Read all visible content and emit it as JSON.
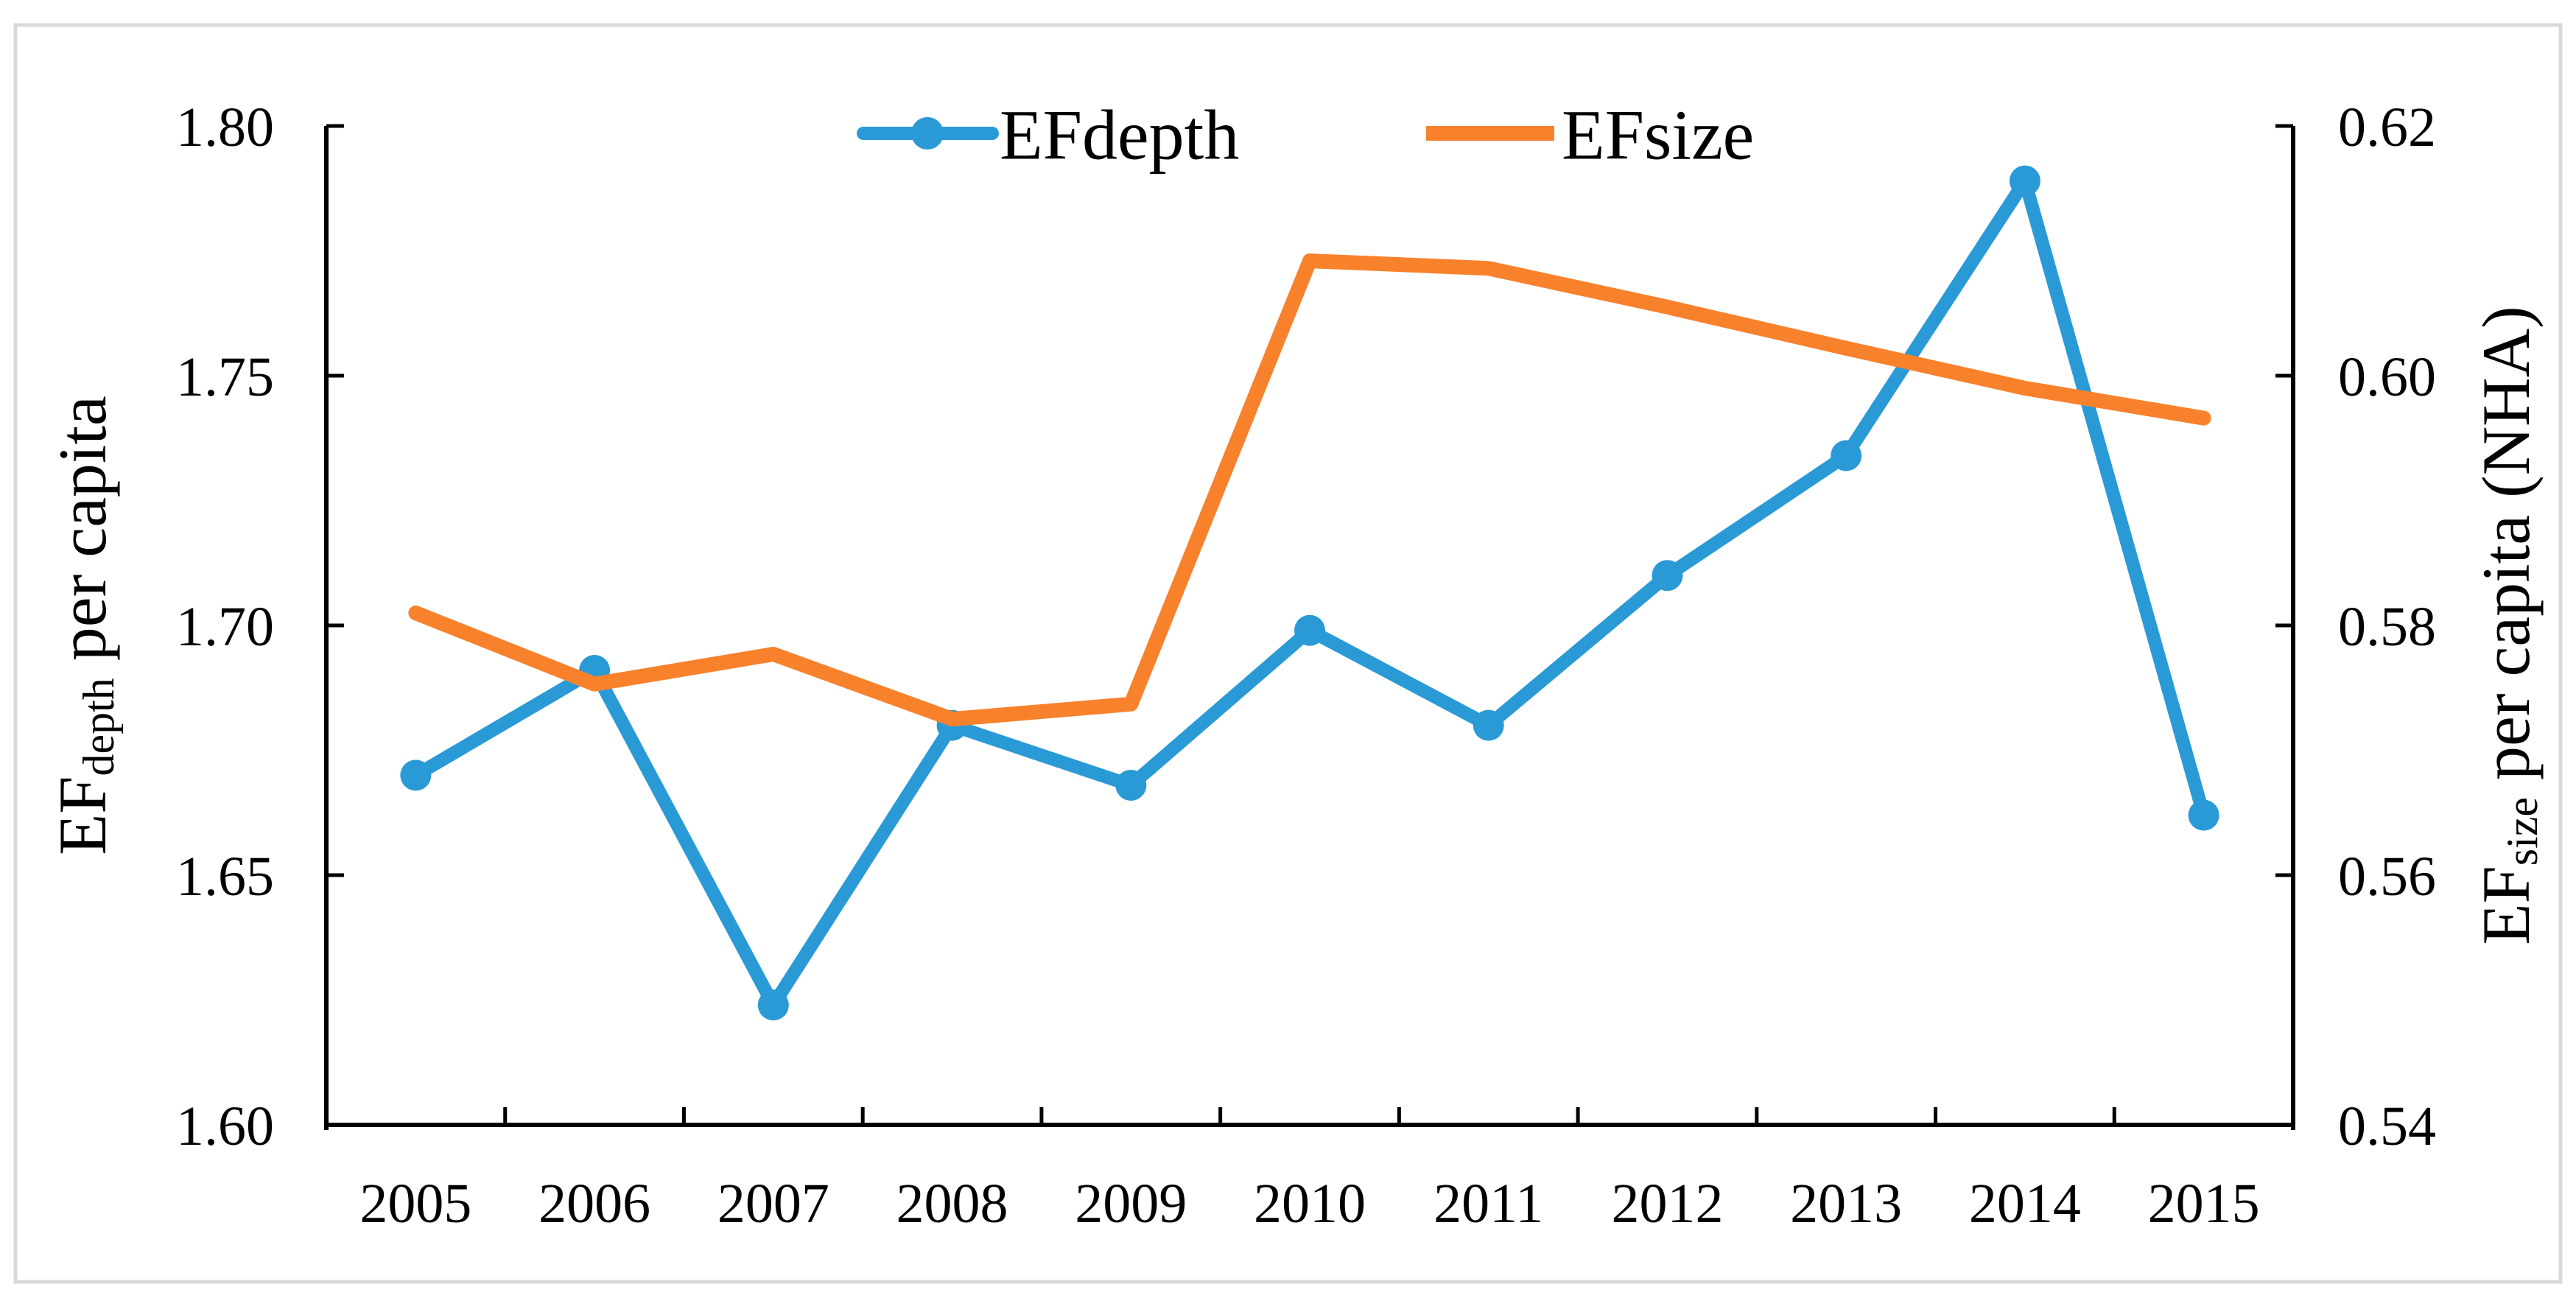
{
  "chart_data": {
    "type": "line",
    "title": "",
    "categories": [
      "2005",
      "2006",
      "2007",
      "2008",
      "2009",
      "2010",
      "2011",
      "2012",
      "2013",
      "2014",
      "2015"
    ],
    "series": [
      {
        "name": "EFdepth",
        "axis": "left",
        "color": "#2A9AD6",
        "marker": "circle",
        "values": [
          1.67,
          1.691,
          1.624,
          1.68,
          1.668,
          1.699,
          1.68,
          1.71,
          1.734,
          1.789,
          1.662
        ]
      },
      {
        "name": "EFsize",
        "axis": "right",
        "color": "#F8812C",
        "marker": "none",
        "values": [
          0.581,
          0.5753,
          0.5777,
          0.5725,
          0.5737,
          0.6092,
          0.6086,
          0.6055,
          0.6022,
          0.599,
          0.5966
        ]
      }
    ],
    "axes": {
      "left": {
        "title": "EFdepth per capita",
        "min": 1.6,
        "max": 1.8,
        "step": 0.05,
        "tick_labels": [
          "1.60",
          "1.65",
          "1.70",
          "1.75",
          "1.80"
        ]
      },
      "right": {
        "title": "EFsize per capita (NHA)",
        "min": 0.54,
        "max": 0.62,
        "step": 0.02,
        "tick_labels": [
          "0.54",
          "0.56",
          "0.58",
          "0.60",
          "0.62"
        ]
      },
      "x": {
        "tick_labels": [
          "2005",
          "2006",
          "2007",
          "2008",
          "2009",
          "2010",
          "2011",
          "2012",
          "2013",
          "2014",
          "2015"
        ]
      }
    },
    "legend": {
      "position": "top-center",
      "entries": [
        "EFdepth",
        "EFsize"
      ]
    },
    "grid": "off"
  },
  "axis_titles": {
    "left": {
      "main": "EF",
      "sub": "depth",
      "rest": " per capita"
    },
    "right": {
      "main": "EF",
      "sub": "size",
      "rest": " per capita (NHA)"
    }
  },
  "legend": {
    "efdepth_label": "EFdepth",
    "efsize_label": "EFsize"
  },
  "colors": {
    "efdepth": "#2A9AD6",
    "efsize": "#F8812C",
    "axis": "#000000",
    "text": "#000000",
    "border": "#D9D9D9",
    "background": "#FFFFFF"
  }
}
